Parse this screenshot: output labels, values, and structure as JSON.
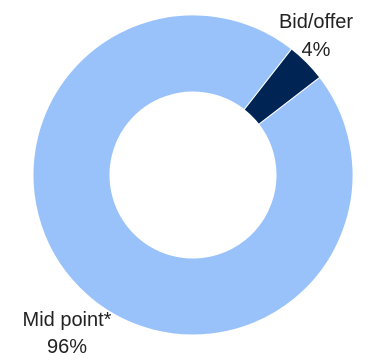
{
  "chart_data": {
    "type": "pie",
    "variant": "donut",
    "slices": [
      {
        "label": "Bid/offer",
        "value": 4,
        "value_label": "4%",
        "color": "#002554"
      },
      {
        "label": "Mid point*",
        "value": 96,
        "value_label": "96%",
        "color": "#99c2fb"
      }
    ],
    "legend": "none"
  }
}
